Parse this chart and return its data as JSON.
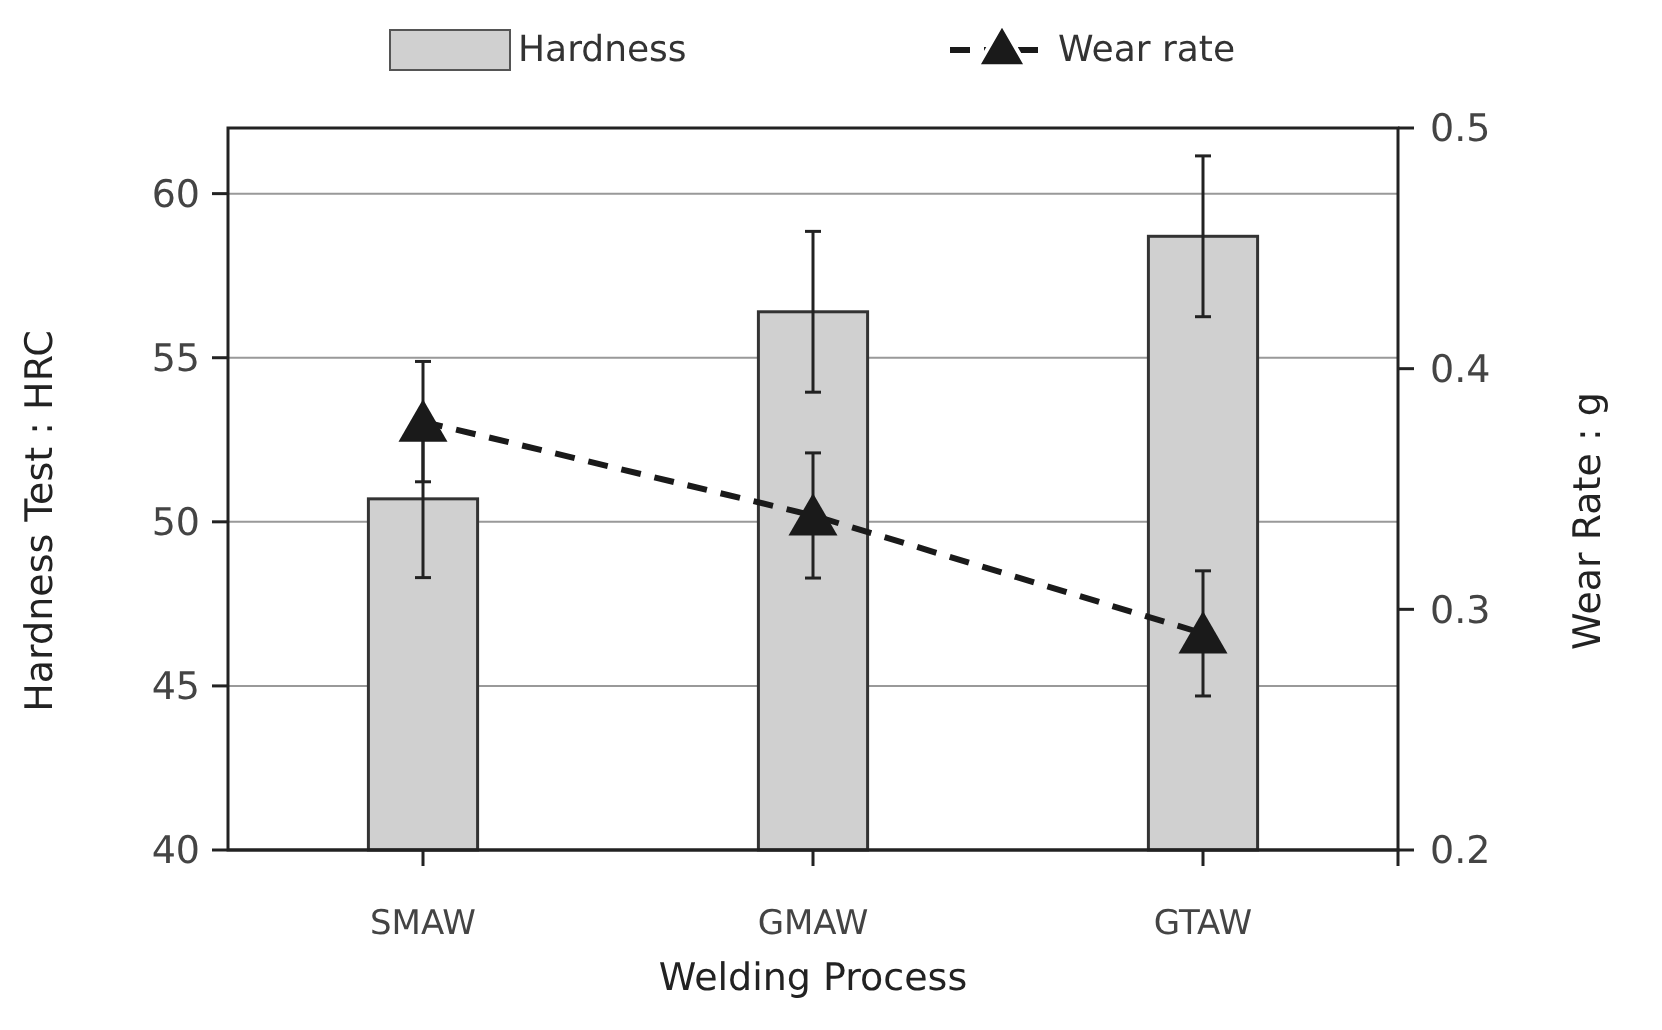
{
  "chart_data": {
    "type": "bar",
    "xlabel": "Welding  Process",
    "ylabel": "Hardness  Test : HRC",
    "y2label": "Wear  Rate : g",
    "categories": [
      "SMAW",
      "GMAW",
      "GTAW"
    ],
    "series": [
      {
        "name": "Hardness",
        "color": "#d0d0d0",
        "values": [
          50.7,
          56.4,
          58.7
        ],
        "errors": [
          2.4,
          2.45,
          2.45
        ]
      },
      {
        "name": "Wear rate",
        "type": "line",
        "axis": "y2",
        "color": "#1a1a1a",
        "values": [
          0.378,
          0.339,
          0.29
        ],
        "errors": [
          0.025,
          0.026,
          0.026
        ],
        "marker": "triangle",
        "line_style": "dashed"
      }
    ],
    "ylim": [
      40,
      62
    ],
    "yticks": [
      40,
      45,
      50,
      55,
      60
    ],
    "y2lim": [
      0.2,
      0.5
    ],
    "y2ticks": [
      0.2,
      0.3,
      0.4,
      0.5
    ],
    "grid": "y",
    "legend": "top"
  }
}
